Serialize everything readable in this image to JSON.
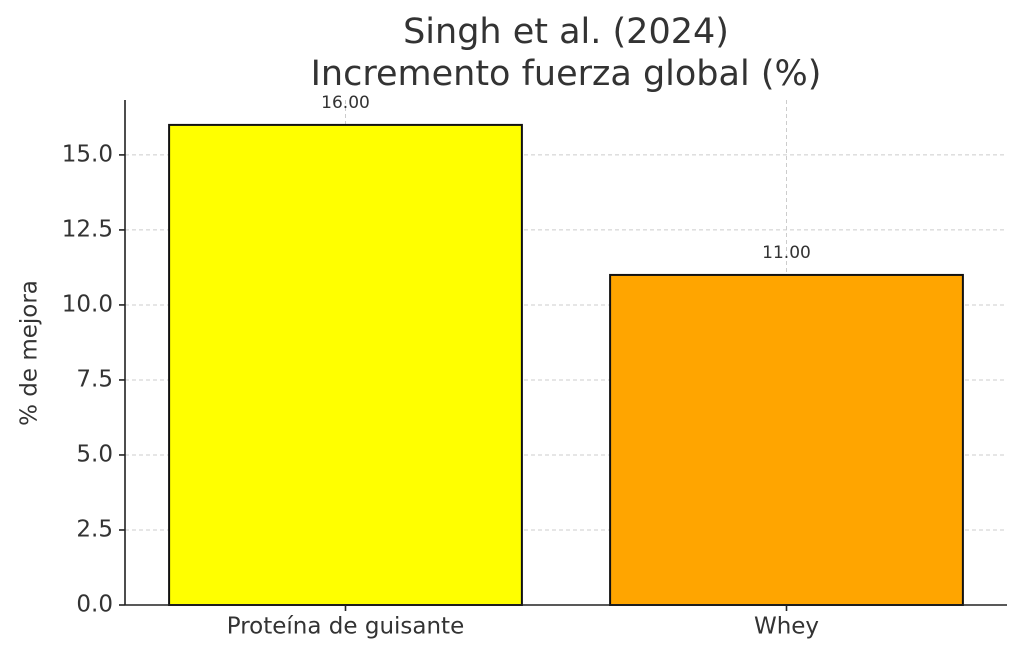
{
  "chart_data": {
    "type": "bar",
    "title": [
      "Singh et al. (2024)",
      "Incremento fuerza global (%)"
    ],
    "y_label": "% de mejora",
    "categories": [
      "Proteína de guisante",
      "Whey"
    ],
    "values": [
      16,
      11
    ],
    "value_labels": [
      "16.00",
      "11.00"
    ],
    "colors": [
      "#ffff00",
      "#ffa500"
    ],
    "ylim": [
      0,
      16.83
    ],
    "yticks": [
      {
        "value": 0,
        "label": "0.0"
      },
      2.5,
      {
        "value": 5,
        "label": "5.0"
      },
      7.5,
      {
        "value": 10,
        "label": "10.0"
      },
      12.5,
      {
        "value": 15,
        "label": "15.0"
      }
    ],
    "grid": true
  }
}
